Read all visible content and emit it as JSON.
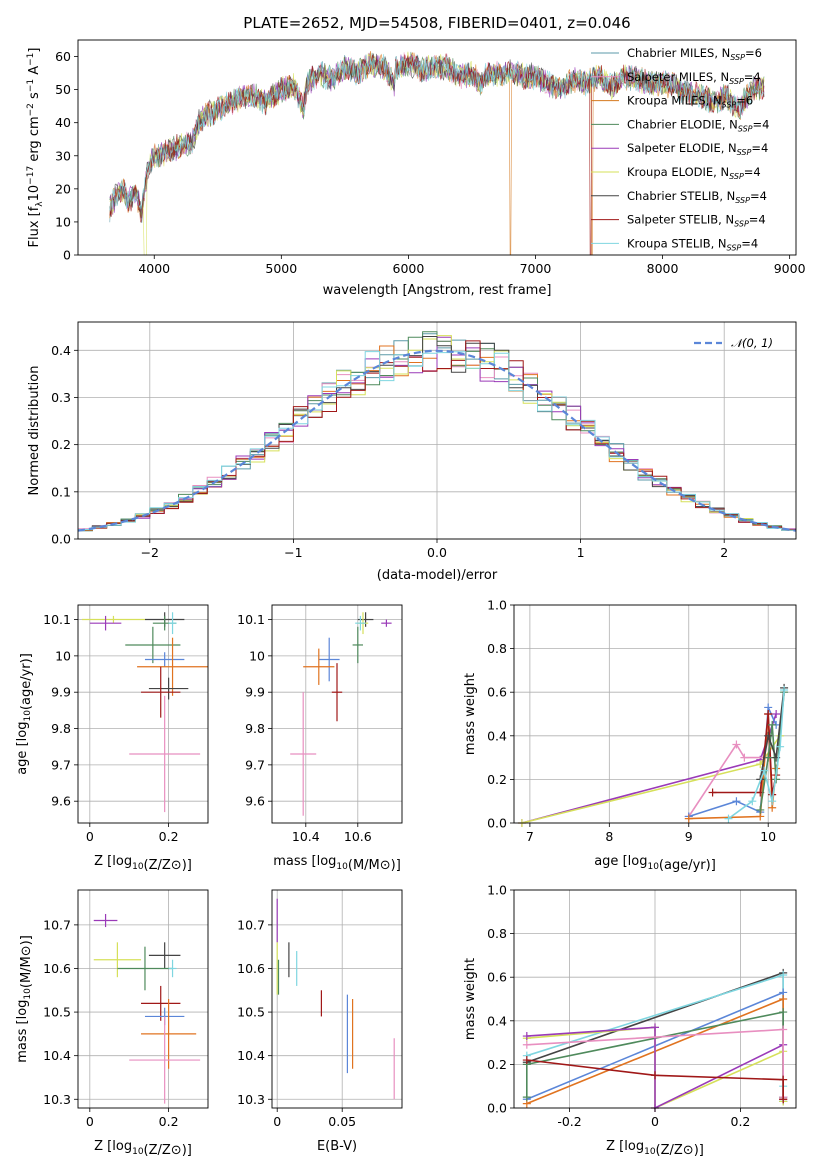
{
  "title": "PLATE=2652, MJD=54508, FIBERID=0401, z=0.046",
  "series": [
    {
      "name": "Chabrier MILES, N",
      "nssp": "6",
      "color": "#5b9aa8"
    },
    {
      "name": "Salpeter MILES, N",
      "nssp": "4",
      "color": "#e88fc0"
    },
    {
      "name": "Kroupa MILES, N",
      "nssp": "6",
      "color": "#d4781e"
    },
    {
      "name": "Chabrier ELODIE, N",
      "nssp": "4",
      "color": "#4f8a5c"
    },
    {
      "name": "Salpeter ELODIE, N",
      "nssp": "4",
      "color": "#9a3ab8"
    },
    {
      "name": "Kroupa ELODIE, N",
      "nssp": "4",
      "color": "#d6e05a"
    },
    {
      "name": "Chabrier STELIB, N",
      "nssp": "4",
      "color": "#444444"
    },
    {
      "name": "Salpeter STELIB, N",
      "nssp": "4",
      "color": "#a01818"
    },
    {
      "name": "Kroupa STELIB, N",
      "nssp": "4",
      "color": "#7fd6e0"
    }
  ],
  "colors": {
    "blue": "#5b86d8",
    "orange": "#e07320",
    "green": "#4f8a5c",
    "red": "#a01818",
    "purple": "#9a3ab8",
    "pink": "#e88fc0",
    "yellow": "#d6e05a",
    "gray": "#444444",
    "cyan": "#7fd6e0"
  },
  "chart_data": [
    {
      "id": "spectrum",
      "type": "line",
      "xlabel": "wavelength [Angstrom, rest frame]",
      "ylabel_parts": [
        "Flux [f",
        "λ",
        "10",
        "−17",
        " erg cm",
        "−2",
        " s",
        "−1",
        " A",
        "−1",
        "]"
      ],
      "xlim": [
        3400,
        9050
      ],
      "ylim": [
        0,
        65
      ],
      "xticks": [
        4000,
        5000,
        6000,
        7000,
        8000,
        9000
      ],
      "yticks": [
        0,
        10,
        20,
        30,
        40,
        50,
        60
      ],
      "legend_position": "right",
      "legend_sub": "SSP",
      "x": [
        3650,
        3700,
        3750,
        3800,
        3850,
        3900,
        3950,
        4000,
        4100,
        4200,
        4300,
        4350,
        4400,
        4500,
        4600,
        4700,
        4800,
        4861,
        4900,
        5000,
        5100,
        5175,
        5200,
        5300,
        5400,
        5500,
        5600,
        5700,
        5800,
        5890,
        5900,
        6000,
        6100,
        6200,
        6300,
        6400,
        6500,
        6563,
        6600,
        6700,
        6800,
        6900,
        7000,
        7100,
        7200,
        7300,
        7400,
        7500,
        7600,
        7700,
        7800,
        7900,
        8000,
        8100,
        8200,
        8300,
        8400,
        8500,
        8600,
        8700,
        8800
      ],
      "flux": [
        14,
        18,
        20,
        16,
        19,
        13,
        26,
        30,
        31,
        33,
        34,
        40,
        42,
        44,
        46,
        48,
        48,
        46,
        47,
        50,
        51,
        44,
        52,
        55,
        53,
        57,
        55,
        58,
        57,
        52,
        56,
        58,
        56,
        57,
        57,
        54,
        55,
        52,
        54,
        55,
        55,
        54,
        54,
        52,
        50,
        53,
        52,
        54,
        51,
        54,
        53,
        52,
        52,
        51,
        49,
        48,
        46,
        48,
        44,
        50,
        51
      ],
      "drops": [
        {
          "series": "Kroupa ELODIE, N",
          "x": 3920,
          "end": 3940
        },
        {
          "series": "Kroupa MILES, N",
          "x": 6800,
          "end": 6810
        },
        {
          "series": "Salpeter STELIB, N",
          "x": 7430,
          "end": 7440
        },
        {
          "series": "Kroupa MILES, N",
          "x": 7440,
          "end": 7450
        }
      ]
    },
    {
      "id": "residuals",
      "type": "histogram",
      "xlabel": "(data-model)/error",
      "ylabel": "Normed distribution",
      "xlim": [
        -2.5,
        2.5
      ],
      "ylim": [
        0,
        0.46
      ],
      "xticks": [
        -2,
        -1,
        0,
        1,
        2
      ],
      "yticks": [
        0.0,
        0.1,
        0.2,
        0.3,
        0.4
      ],
      "grid": true,
      "legend_position": "top-right",
      "normal_label": "𝒩(0, 1)",
      "normal_color": "#5b86d8",
      "bin_width": 0.1
    },
    {
      "id": "age-vs-z",
      "type": "errorbar",
      "xlabel": "Z [log10(Z/Z⊙)]",
      "ylabel": "age [log10(age/yr)]",
      "xlim": [
        -0.03,
        0.3
      ],
      "ylim": [
        9.54,
        10.14
      ],
      "xticks": [
        0.0,
        0.2
      ],
      "yticks": [
        9.6,
        9.7,
        9.8,
        9.9,
        10.0,
        10.1
      ],
      "grid": true,
      "points": [
        {
          "x": 0.06,
          "xerr": 0.08,
          "y": 10.1,
          "yerr": 0.01,
          "color": "#d6e05a"
        },
        {
          "x": 0.04,
          "xerr": 0.04,
          "y": 10.09,
          "yerr": 0.02,
          "color": "#9a3ab8"
        },
        {
          "x": 0.19,
          "xerr": 0.05,
          "y": 10.1,
          "yerr": 0.02,
          "color": "#444444"
        },
        {
          "x": 0.19,
          "xerr": 0.03,
          "y": 10.09,
          "yerr": 0.02,
          "color": "#4f8a5c"
        },
        {
          "x": 0.21,
          "xerr": 0.01,
          "y": 10.09,
          "yerr": 0.03,
          "color": "#7fd6e0"
        },
        {
          "x": 0.16,
          "xerr": 0.07,
          "y": 10.03,
          "yerr": 0.05,
          "color": "#4f8a5c"
        },
        {
          "x": 0.19,
          "xerr": 0.05,
          "y": 9.99,
          "yerr": 0.02,
          "color": "#5b86d8"
        },
        {
          "x": 0.21,
          "xerr": 0.09,
          "y": 9.97,
          "yerr": 0.08,
          "color": "#e07320"
        },
        {
          "x": 0.2,
          "xerr": 0.05,
          "y": 9.91,
          "yerr": 0.03,
          "color": "#444444"
        },
        {
          "x": 0.18,
          "xerr": 0.05,
          "y": 9.9,
          "yerr": 0.07,
          "color": "#a01818"
        },
        {
          "x": 0.19,
          "xerr": 0.09,
          "y": 9.73,
          "yerr": 0.16,
          "color": "#e88fc0"
        }
      ]
    },
    {
      "id": "age-vs-mass",
      "type": "errorbar",
      "xlabel": "mass [log10(M/M⊙)]",
      "xlim": [
        10.27,
        10.77
      ],
      "ylim": [
        9.54,
        10.14
      ],
      "xticks": [
        10.4,
        10.6
      ],
      "yticks": [
        9.6,
        9.7,
        9.8,
        9.9,
        10.0,
        10.1
      ],
      "grid": true,
      "points": [
        {
          "x": 10.71,
          "xerr": 0.02,
          "y": 10.09,
          "yerr": 0.01,
          "color": "#9a3ab8"
        },
        {
          "x": 10.63,
          "xerr": 0.03,
          "y": 10.1,
          "yerr": 0.02,
          "color": "#444444"
        },
        {
          "x": 10.62,
          "xerr": 0.02,
          "y": 10.09,
          "yerr": 0.03,
          "color": "#d6e05a"
        },
        {
          "x": 10.61,
          "xerr": 0.02,
          "y": 10.09,
          "yerr": 0.02,
          "color": "#7fd6e0"
        },
        {
          "x": 10.6,
          "xerr": 0.02,
          "y": 10.03,
          "yerr": 0.05,
          "color": "#4f8a5c"
        },
        {
          "x": 10.49,
          "xerr": 0.04,
          "y": 9.99,
          "yerr": 0.06,
          "color": "#5b86d8"
        },
        {
          "x": 10.45,
          "xerr": 0.06,
          "y": 9.97,
          "yerr": 0.05,
          "color": "#e07320"
        },
        {
          "x": 10.52,
          "xerr": 0.02,
          "y": 9.9,
          "yerr": 0.08,
          "color": "#a01818"
        },
        {
          "x": 10.39,
          "xerr": 0.05,
          "y": 9.73,
          "yerr": 0.17,
          "color": "#e88fc0"
        }
      ]
    },
    {
      "id": "mass-weight-vs-age",
      "type": "line",
      "xlabel": "age [log10(age/yr)]",
      "ylabel": "mass weight",
      "xlim": [
        6.8,
        10.35
      ],
      "ylim": [
        0,
        1.0
      ],
      "xticks": [
        7,
        8,
        9,
        10
      ],
      "yticks": [
        0.0,
        0.2,
        0.4,
        0.6,
        0.8,
        1.0
      ],
      "grid": true,
      "lines": [
        {
          "color": "#9a3ab8",
          "x": [
            6.9,
            9.9,
            10.1
          ],
          "y": [
            0.0,
            0.29,
            0.5
          ]
        },
        {
          "color": "#d6e05a",
          "x": [
            6.9,
            9.9,
            10.15
          ],
          "y": [
            0.0,
            0.27,
            0.4
          ]
        },
        {
          "color": "#e88fc0",
          "x": [
            9.0,
            9.6,
            9.7,
            10.0
          ],
          "y": [
            0.03,
            0.36,
            0.3,
            0.3
          ]
        },
        {
          "color": "#5b86d8",
          "x": [
            9.0,
            9.6,
            9.9,
            10.0,
            10.1
          ],
          "y": [
            0.03,
            0.1,
            0.05,
            0.53,
            0.45
          ]
        },
        {
          "color": "#e07320",
          "x": [
            9.0,
            9.9,
            10.0,
            10.05,
            10.1
          ],
          "y": [
            0.02,
            0.03,
            0.5,
            0.07,
            0.25
          ]
        },
        {
          "color": "#a01818",
          "x": [
            9.3,
            9.9,
            10.0,
            10.05,
            10.1
          ],
          "y": [
            0.14,
            0.14,
            0.5,
            0.13,
            0.22
          ]
        },
        {
          "color": "#4f8a5c",
          "x": [
            9.9,
            10.0,
            10.05,
            10.1,
            10.2
          ],
          "y": [
            0.06,
            0.3,
            0.45,
            0.2,
            0.6
          ]
        },
        {
          "color": "#444444",
          "x": [
            9.9,
            10.0,
            10.1,
            10.2
          ],
          "y": [
            0.2,
            0.4,
            0.3,
            0.62
          ]
        },
        {
          "color": "#7fd6e0",
          "x": [
            9.5,
            9.8,
            9.95,
            10.05,
            10.15,
            10.2
          ],
          "y": [
            0.02,
            0.1,
            0.24,
            0.1,
            0.35,
            0.61
          ]
        }
      ]
    },
    {
      "id": "mass-vs-z",
      "type": "errorbar",
      "xlabel": "Z [log10(Z/Z⊙)]",
      "ylabel": "mass [log10(M/M⊙)]",
      "xlim": [
        -0.03,
        0.3
      ],
      "ylim": [
        10.28,
        10.78
      ],
      "xticks": [
        0.0,
        0.2
      ],
      "yticks": [
        10.3,
        10.4,
        10.5,
        10.6,
        10.7
      ],
      "grid": true,
      "points": [
        {
          "x": 0.04,
          "xerr": 0.03,
          "y": 10.71,
          "yerr": 0.015,
          "color": "#9a3ab8"
        },
        {
          "x": 0.07,
          "xerr": 0.06,
          "y": 10.62,
          "yerr": 0.04,
          "color": "#d6e05a"
        },
        {
          "x": 0.19,
          "xerr": 0.04,
          "y": 10.63,
          "yerr": 0.03,
          "color": "#444444"
        },
        {
          "x": 0.14,
          "xerr": 0.07,
          "y": 10.6,
          "yerr": 0.05,
          "color": "#4f8a5c"
        },
        {
          "x": 0.21,
          "xerr": 0.01,
          "y": 10.6,
          "yerr": 0.02,
          "color": "#7fd6e0"
        },
        {
          "x": 0.18,
          "xerr": 0.05,
          "y": 10.52,
          "yerr": 0.04,
          "color": "#a01818"
        },
        {
          "x": 0.19,
          "xerr": 0.05,
          "y": 10.49,
          "yerr": 0.02,
          "color": "#5b86d8"
        },
        {
          "x": 0.2,
          "xerr": 0.07,
          "y": 10.45,
          "yerr": 0.08,
          "color": "#e07320"
        },
        {
          "x": 0.19,
          "xerr": 0.09,
          "y": 10.39,
          "yerr": 0.1,
          "color": "#e88fc0"
        }
      ]
    },
    {
      "id": "mass-vs-ebv",
      "type": "errorbar",
      "xlabel": "E(B-V)",
      "xlim": [
        -0.004,
        0.096
      ],
      "ylim": [
        10.28,
        10.78
      ],
      "xticks": [
        0.0,
        0.05
      ],
      "yticks": [
        10.3,
        10.4,
        10.5,
        10.6,
        10.7
      ],
      "grid": true,
      "points": [
        {
          "x": 0.0,
          "y": 10.71,
          "yerr": 0.05,
          "color": "#9a3ab8"
        },
        {
          "x": 0.0,
          "y": 10.6,
          "yerr": 0.06,
          "color": "#d6e05a"
        },
        {
          "x": 0.001,
          "y": 10.58,
          "yerr": 0.04,
          "color": "#4f8a5c"
        },
        {
          "x": 0.009,
          "y": 10.62,
          "yerr": 0.04,
          "color": "#444444"
        },
        {
          "x": 0.015,
          "y": 10.6,
          "yerr": 0.04,
          "color": "#7fd6e0"
        },
        {
          "x": 0.034,
          "y": 10.52,
          "yerr": 0.03,
          "color": "#a01818"
        },
        {
          "x": 0.054,
          "y": 10.45,
          "yerr": 0.09,
          "color": "#5b86d8"
        },
        {
          "x": 0.058,
          "y": 10.45,
          "yerr": 0.08,
          "color": "#e07320"
        },
        {
          "x": 0.09,
          "y": 10.37,
          "yerr": 0.07,
          "color": "#e88fc0"
        }
      ]
    },
    {
      "id": "mass-weight-vs-z",
      "type": "line",
      "xlabel": "Z [log10(Z/Z⊙)]",
      "ylabel": "mass weight",
      "xlim": [
        -0.33,
        0.33
      ],
      "ylim": [
        0,
        1.0
      ],
      "xticks": [
        -0.2,
        0.0,
        0.2
      ],
      "yticks": [
        0.0,
        0.2,
        0.4,
        0.6,
        0.8,
        1.0
      ],
      "grid": true,
      "lines": [
        {
          "color": "#444444",
          "x": [
            -0.3,
            0.3,
            0.3
          ],
          "y": [
            0.21,
            0.62,
            0.03
          ]
        },
        {
          "color": "#7fd6e0",
          "x": [
            -0.3,
            0.3,
            0.3,
            0.3
          ],
          "y": [
            0.24,
            0.61,
            0.1,
            0.03
          ]
        },
        {
          "color": "#5b86d8",
          "x": [
            -0.3,
            0.3,
            0.3
          ],
          "y": [
            0.04,
            0.53,
            0.05
          ]
        },
        {
          "color": "#e07320",
          "x": [
            -0.3,
            0.3,
            0.3
          ],
          "y": [
            0.02,
            0.5,
            0.04
          ]
        },
        {
          "color": "#4f8a5c",
          "x": [
            -0.3,
            -0.3,
            0.3,
            0.3
          ],
          "y": [
            0.05,
            0.2,
            0.44,
            0.05
          ]
        },
        {
          "color": "#d6e05a",
          "x": [
            -0.3,
            0.0,
            0.0,
            0.3,
            0.3
          ],
          "y": [
            0.32,
            0.37,
            0.0,
            0.26,
            0.03
          ]
        },
        {
          "color": "#9a3ab8",
          "x": [
            -0.3,
            0.0,
            0.0,
            0.3,
            0.3
          ],
          "y": [
            0.33,
            0.37,
            0.0,
            0.29,
            0.04
          ]
        },
        {
          "color": "#e88fc0",
          "x": [
            -0.3,
            0.3,
            0.3
          ],
          "y": [
            0.29,
            0.36,
            0.05
          ]
        },
        {
          "color": "#a01818",
          "x": [
            -0.3,
            0.0,
            0.3,
            0.3
          ],
          "y": [
            0.22,
            0.15,
            0.13,
            0.04
          ]
        }
      ]
    }
  ]
}
